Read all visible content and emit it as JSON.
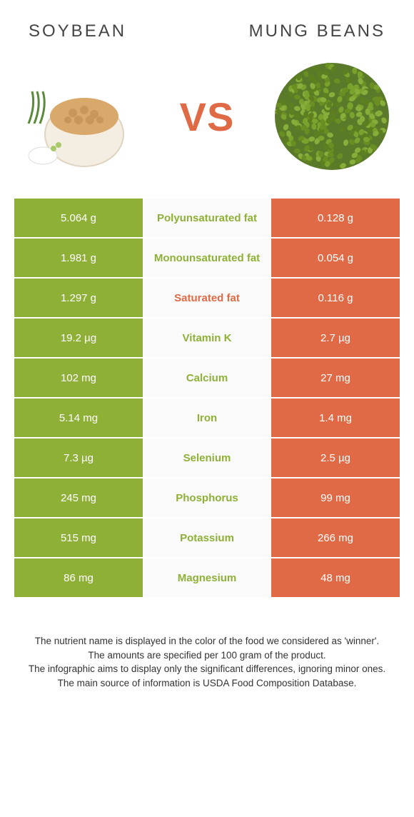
{
  "colors": {
    "left": "#8fb037",
    "right": "#e06a45",
    "mid_bg": "#fafafa",
    "page_bg": "#ffffff"
  },
  "header": {
    "left_title": "Soybean",
    "right_title": "Mung beans"
  },
  "hero": {
    "vs_label": "VS"
  },
  "table": {
    "rows": [
      {
        "label": "Polyunsaturated fat",
        "left": "5.064 g",
        "right": "0.128 g",
        "winner": "left"
      },
      {
        "label": "Monounsaturated fat",
        "left": "1.981 g",
        "right": "0.054 g",
        "winner": "left"
      },
      {
        "label": "Saturated fat",
        "left": "1.297 g",
        "right": "0.116 g",
        "winner": "right"
      },
      {
        "label": "Vitamin K",
        "left": "19.2 µg",
        "right": "2.7 µg",
        "winner": "left"
      },
      {
        "label": "Calcium",
        "left": "102 mg",
        "right": "27 mg",
        "winner": "left"
      },
      {
        "label": "Iron",
        "left": "5.14 mg",
        "right": "1.4 mg",
        "winner": "left"
      },
      {
        "label": "Selenium",
        "left": "7.3 µg",
        "right": "2.5 µg",
        "winner": "left"
      },
      {
        "label": "Phosphorus",
        "left": "245 mg",
        "right": "99 mg",
        "winner": "left"
      },
      {
        "label": "Potassium",
        "left": "515 mg",
        "right": "266 mg",
        "winner": "left"
      },
      {
        "label": "Magnesium",
        "left": "86 mg",
        "right": "48 mg",
        "winner": "left"
      }
    ]
  },
  "footer": {
    "line1": "The nutrient name is displayed in the color of the food we considered as 'winner'.",
    "line2": "The amounts are specified per 100 gram of the product.",
    "line3": "The infographic aims to display only the significant differences, ignoring minor ones.",
    "line4": "The main source of information is USDA Food Composition Database."
  }
}
